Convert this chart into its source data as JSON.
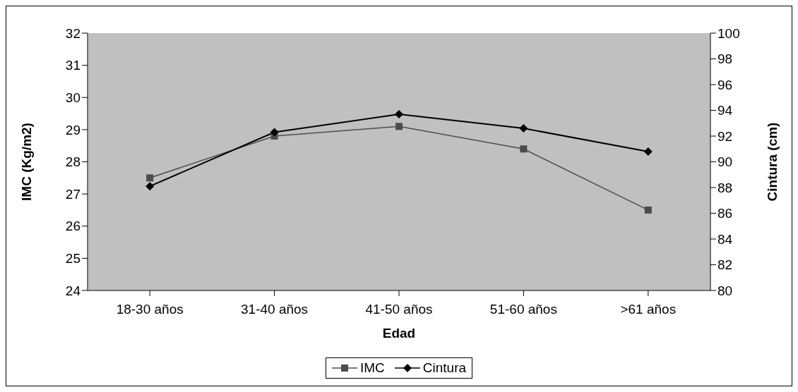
{
  "chart_data": {
    "type": "line",
    "xlabel": "Edad",
    "ylabel": "IMC (Kg/m2)",
    "y2label": "Cintura (cm)",
    "categories": [
      "18-30 años",
      "31-40 años",
      "41-50 años",
      "51-60 años",
      ">61 años"
    ],
    "series": [
      {
        "name": "IMC",
        "color": "#4d4d4d",
        "marker": "square",
        "values": [
          27.5,
          28.8,
          29.1,
          28.4,
          26.5
        ]
      },
      {
        "name": "Cintura",
        "color": "#000000",
        "marker": "diamond",
        "axis": "y2",
        "values": [
          88.1,
          92.3,
          93.7,
          92.6,
          90.8
        ]
      }
    ],
    "ylim": [
      24,
      32
    ],
    "yticks": [
      24,
      25,
      26,
      27,
      28,
      29,
      30,
      31,
      32
    ],
    "y2lim": [
      80,
      100
    ],
    "y2ticks": [
      80,
      82,
      84,
      86,
      88,
      90,
      92,
      94,
      96,
      98,
      100
    ],
    "grid": false,
    "legend": "bottom"
  }
}
